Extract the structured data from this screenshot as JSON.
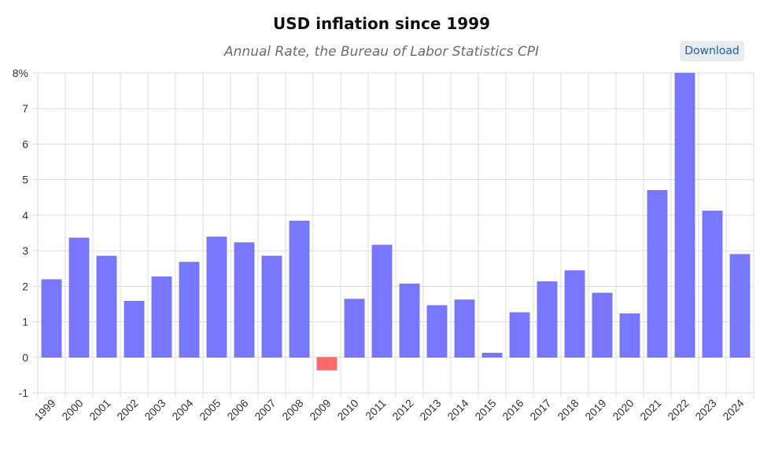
{
  "header": {
    "title": "USD inflation since 1999",
    "subtitle": "Annual Rate, the Bureau of Labor Statistics CPI"
  },
  "toolbar": {
    "download_label": "Download"
  },
  "colors": {
    "positive_bar": "#7777ff",
    "negative_bar": "#ff6b6b",
    "grid": "#dddddd",
    "axis": "#bbbbbb"
  },
  "chart_data": {
    "type": "bar",
    "title": "USD inflation since 1999",
    "subtitle": "Annual Rate, the Bureau of Labor Statistics CPI",
    "xlabel": "",
    "ylabel": "",
    "ylim": [
      -1,
      8
    ],
    "y_ticks": [
      -1,
      0,
      1,
      2,
      3,
      4,
      5,
      6,
      7,
      8
    ],
    "y_tick_labels": [
      "-1",
      "0",
      "1",
      "2",
      "3",
      "4",
      "5",
      "6",
      "7",
      "8%"
    ],
    "grid": true,
    "categories": [
      "1999",
      "2000",
      "2001",
      "2002",
      "2003",
      "2004",
      "2005",
      "2006",
      "2007",
      "2008",
      "2009",
      "2010",
      "2011",
      "2012",
      "2013",
      "2014",
      "2015",
      "2016",
      "2017",
      "2018",
      "2019",
      "2020",
      "2021",
      "2022",
      "2023",
      "2024"
    ],
    "values": [
      2.19,
      3.36,
      2.85,
      1.58,
      2.27,
      2.68,
      3.39,
      3.23,
      2.85,
      3.84,
      -0.36,
      1.64,
      3.16,
      2.07,
      1.46,
      1.62,
      0.12,
      1.26,
      2.13,
      2.44,
      1.81,
      1.23,
      4.7,
      8.0,
      4.12,
      2.9
    ]
  }
}
